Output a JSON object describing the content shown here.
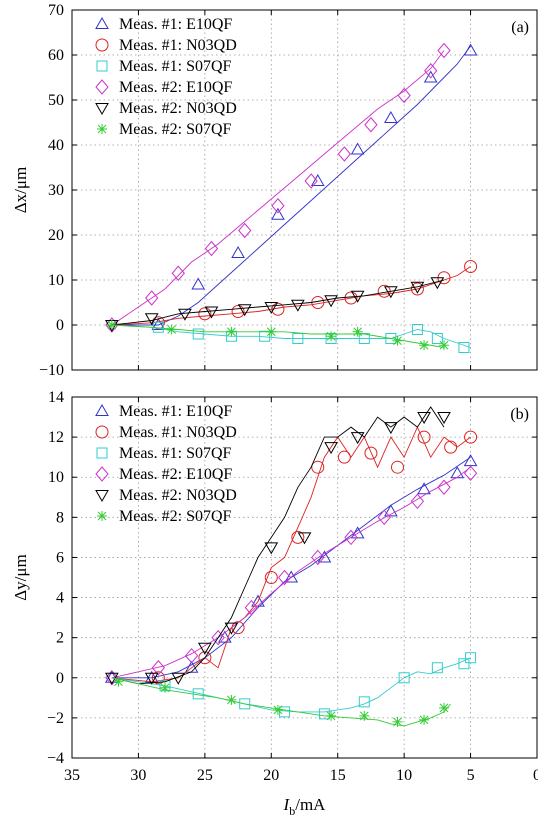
{
  "chart_data": [
    {
      "type": "line",
      "panel_label": "(a)",
      "ylabel": "Δx/μm",
      "xlabel": "",
      "xlim": [
        35,
        0
      ],
      "ylim": [
        -10,
        70
      ],
      "grid": true,
      "legend_position": "top-left",
      "x_ticks": [
        35,
        30,
        25,
        20,
        15,
        10,
        5,
        0
      ],
      "x_ticklabels": [
        "",
        "",
        "",
        "",
        "",
        "",
        "",
        ""
      ],
      "y_ticks": [
        -10,
        0,
        10,
        20,
        30,
        40,
        50,
        60,
        70
      ],
      "y_ticklabels": [
        "−10",
        "0",
        "10",
        "20",
        "30",
        "40",
        "50",
        "60",
        "70"
      ],
      "series": [
        {
          "name": "Meas. #1: E10QF",
          "color": "#3333cc",
          "marker": "triangle-up",
          "x": [
            32,
            28.5,
            27,
            25.5,
            24,
            22.5,
            21,
            19.5,
            18,
            16.5,
            15,
            13.5,
            12,
            10.5,
            9,
            8,
            7,
            6,
            5
          ],
          "y": [
            0,
            0,
            2,
            5,
            9,
            13,
            17,
            21,
            25,
            29,
            33,
            37,
            41,
            45,
            49,
            52,
            55,
            58,
            62
          ],
          "marker_x": [
            28.5,
            25.5,
            22.5,
            19.5,
            16.5,
            13.5,
            11,
            8,
            5
          ],
          "marker_y": [
            0,
            9,
            16,
            24.5,
            32,
            39,
            46,
            55,
            61
          ]
        },
        {
          "name": "Meas. #1: N03QD",
          "color": "#dd2222",
          "marker": "circle",
          "x": [
            32,
            29,
            27,
            25,
            23,
            21,
            19,
            17,
            15,
            13,
            11,
            9,
            7,
            6,
            5
          ],
          "y": [
            0,
            0.5,
            1.5,
            2,
            2.5,
            3,
            4,
            4.5,
            5.5,
            6.5,
            7,
            8,
            10,
            11,
            13
          ],
          "marker_x": [
            28.5,
            25,
            22.5,
            19.5,
            16.5,
            14,
            11.5,
            9,
            7,
            5
          ],
          "marker_y": [
            0.5,
            2.5,
            3,
            3.5,
            5,
            6,
            7.5,
            8,
            10.5,
            13
          ]
        },
        {
          "name": "Meas. #1: S07QF",
          "color": "#33cccc",
          "marker": "square",
          "x": [
            32,
            29,
            27,
            25,
            23,
            21,
            19,
            17,
            15,
            13,
            11,
            10,
            9,
            8,
            7,
            6,
            5
          ],
          "y": [
            0,
            -0.5,
            -1.5,
            -2,
            -2.5,
            -2.5,
            -3,
            -3,
            -3,
            -3,
            -3,
            -2,
            -1,
            -1.5,
            -3,
            -4,
            -5
          ],
          "marker_x": [
            28.5,
            25.5,
            23,
            20.5,
            18,
            15.5,
            13,
            11,
            9,
            7.5,
            5.5
          ],
          "marker_y": [
            -0.5,
            -2,
            -2.5,
            -2.5,
            -3,
            -3,
            -3,
            -3,
            -1,
            -3,
            -5
          ]
        },
        {
          "name": "Meas. #2: E10QF",
          "color": "#cc33cc",
          "marker": "diamond",
          "x": [
            32,
            30,
            28,
            26,
            24,
            22,
            20,
            18,
            16,
            14,
            12,
            10,
            8,
            7
          ],
          "y": [
            0,
            4,
            8,
            14,
            18,
            23,
            28,
            33,
            38,
            43,
            48,
            52,
            57,
            61
          ],
          "marker_x": [
            32,
            29,
            27,
            24.5,
            22,
            19.5,
            17,
            14.5,
            12.5,
            10,
            8,
            7
          ],
          "marker_y": [
            0,
            6,
            11.5,
            17,
            21,
            26.5,
            32,
            38,
            44.5,
            51,
            56.5,
            61
          ]
        },
        {
          "name": "Meas. #2: N03QD",
          "color": "#000000",
          "marker": "triangle-down",
          "x": [
            32,
            29,
            27,
            25,
            23,
            21,
            19,
            17,
            15,
            13,
            11,
            9,
            7
          ],
          "y": [
            0,
            1,
            2.5,
            3,
            3.5,
            4,
            4.5,
            5,
            6,
            6.5,
            7.5,
            8.5,
            10
          ],
          "marker_x": [
            32,
            29,
            26.5,
            24.5,
            22,
            20,
            18,
            15.5,
            13.5,
            11,
            9,
            7.5
          ],
          "marker_y": [
            0,
            1.5,
            2.5,
            3,
            3.5,
            4,
            4.5,
            5.5,
            6.5,
            7.5,
            8.5,
            9.5
          ]
        },
        {
          "name": "Meas. #2: S07QF",
          "color": "#33cc33",
          "marker": "asterisk",
          "x": [
            32,
            29,
            27,
            25,
            23,
            21,
            19,
            17,
            15,
            13,
            11,
            9,
            7
          ],
          "y": [
            0,
            -0.5,
            -1,
            -1.5,
            -1.5,
            -1.5,
            -1.5,
            -2,
            -2,
            -2,
            -3,
            -4,
            -5
          ],
          "marker_x": [
            32,
            27.5,
            23,
            20,
            15.5,
            13.5,
            10.5,
            8.5,
            7
          ],
          "marker_y": [
            0,
            -1,
            -1.5,
            -1.5,
            -2.5,
            -1.5,
            -3.5,
            -4.5,
            -4.5
          ]
        }
      ]
    },
    {
      "type": "line",
      "panel_label": "(b)",
      "ylabel": "Δy/μm",
      "xlabel": "Ib/mA",
      "xlabel_main": "I",
      "xlabel_sub": "b",
      "xlabel_unit": "/mA",
      "xlim": [
        35,
        0
      ],
      "ylim": [
        -4,
        14
      ],
      "grid": true,
      "legend_position": "top-left",
      "x_ticks": [
        35,
        30,
        25,
        20,
        15,
        10,
        5,
        0
      ],
      "x_ticklabels": [
        "35",
        "30",
        "25",
        "20",
        "15",
        "10",
        "5",
        "0"
      ],
      "y_ticks": [
        -4,
        -2,
        0,
        2,
        4,
        6,
        8,
        10,
        12,
        14
      ],
      "y_ticklabels": [
        "−4",
        "−2",
        "0",
        "2",
        "4",
        "6",
        "8",
        "10",
        "12",
        "14"
      ],
      "series": [
        {
          "name": "Meas. #1: E10QF",
          "color": "#3333cc",
          "marker": "triangle-up",
          "x": [
            32,
            29,
            27,
            25,
            23,
            21,
            19,
            17,
            15,
            13,
            11,
            9,
            7,
            5
          ],
          "y": [
            0,
            0,
            0.3,
            1,
            2,
            3.5,
            4.8,
            5.6,
            6.6,
            7.6,
            8.6,
            9.4,
            10.1,
            11
          ],
          "marker_x": [
            32,
            29,
            26,
            23.5,
            21,
            18.5,
            16,
            13.5,
            11,
            8.5,
            6,
            5
          ],
          "marker_y": [
            0,
            0,
            0.5,
            2,
            3.8,
            5,
            6,
            7.2,
            8.3,
            9.4,
            10.2,
            10.8
          ]
        },
        {
          "name": "Meas. #1: N03QD",
          "color": "#dd2222",
          "marker": "circle",
          "x": [
            32,
            29,
            27,
            26,
            25,
            24,
            23,
            22,
            21,
            20,
            19,
            18,
            17,
            16,
            15,
            14,
            13,
            12,
            11,
            10,
            9,
            8,
            7,
            6,
            5
          ],
          "y": [
            0,
            -0.2,
            0,
            0.5,
            1,
            0.5,
            2.5,
            3,
            3.8,
            5.5,
            6,
            7.5,
            9,
            11,
            12,
            11,
            12,
            10.5,
            12,
            11,
            12.5,
            11,
            12,
            11.5,
            12
          ],
          "marker_x": [
            28.5,
            25,
            22.5,
            20,
            18,
            16.5,
            14.5,
            12.5,
            10.5,
            8.5,
            6.5,
            5
          ],
          "marker_y": [
            0,
            1,
            2.5,
            5,
            7,
            10.5,
            11,
            11.2,
            10.5,
            12,
            11.5,
            12
          ]
        },
        {
          "name": "Meas. #1: S07QF",
          "color": "#33cccc",
          "marker": "square",
          "x": [
            32,
            30,
            28,
            26,
            24,
            22,
            20,
            18,
            16,
            14,
            13,
            12,
            11,
            10,
            9,
            8,
            7,
            6,
            5
          ],
          "y": [
            0,
            -0.2,
            -0.4,
            -0.7,
            -1,
            -1.3,
            -1.6,
            -1.7,
            -1.7,
            -1.5,
            -1.3,
            -1,
            -0.5,
            0,
            0.3,
            0.2,
            0.5,
            0.7,
            1
          ],
          "marker_x": [
            28,
            25.5,
            22,
            19,
            16,
            13,
            10,
            7.5,
            5.5,
            5
          ],
          "marker_y": [
            -0.4,
            -0.8,
            -1.3,
            -1.7,
            -1.8,
            -1.2,
            0,
            0.5,
            0.7,
            1
          ]
        },
        {
          "name": "Meas. #2: E10QF",
          "color": "#cc33cc",
          "marker": "diamond",
          "x": [
            32,
            30,
            28,
            26,
            24,
            22,
            20,
            18,
            16,
            14,
            12,
            10,
            8,
            6,
            5
          ],
          "y": [
            0,
            0.3,
            0.6,
            1.2,
            2,
            3,
            4.2,
            5.3,
            6.2,
            7,
            7.8,
            8.5,
            9.3,
            10,
            10.5
          ],
          "marker_x": [
            32,
            28.5,
            26,
            24,
            21.5,
            19,
            16.5,
            14,
            11.5,
            9,
            7,
            5
          ],
          "marker_y": [
            0,
            0.5,
            1.1,
            2,
            3.5,
            5,
            6,
            7,
            8,
            8.8,
            9.5,
            10.2
          ]
        },
        {
          "name": "Meas. #2: N03QD",
          "color": "#000000",
          "marker": "triangle-down",
          "x": [
            32,
            30,
            28,
            26,
            25,
            24,
            23,
            22,
            21,
            20,
            19,
            18,
            17,
            16,
            15,
            14,
            13,
            12,
            11,
            10,
            9,
            8,
            7
          ],
          "y": [
            0,
            -0.3,
            -0.2,
            0.3,
            1,
            2,
            3,
            4.5,
            6,
            7,
            8,
            9.5,
            10.5,
            12,
            12,
            12.5,
            12,
            13,
            12.5,
            13,
            12.5,
            13.5,
            12.5
          ],
          "marker_x": [
            32,
            29,
            27,
            25,
            23,
            20,
            17.5,
            15.5,
            13.5,
            11,
            8.5,
            7
          ],
          "marker_y": [
            0,
            0,
            0,
            1.5,
            2.5,
            6.5,
            7,
            11.5,
            12,
            12.5,
            13,
            13
          ]
        },
        {
          "name": "Meas. #2: S07QF",
          "color": "#33cc33",
          "marker": "asterisk",
          "x": [
            32,
            30,
            28,
            26,
            24,
            22,
            20,
            18,
            16,
            14,
            12,
            11,
            10,
            9,
            8,
            7,
            6.5
          ],
          "y": [
            0,
            -0.3,
            -0.6,
            -0.8,
            -1,
            -1.3,
            -1.5,
            -1.7,
            -1.9,
            -2,
            -2.1,
            -2.3,
            -2.4,
            -2.2,
            -2,
            -1.7,
            -1.3
          ],
          "marker_x": [
            31.5,
            28,
            23,
            19.5,
            15.5,
            13,
            10.5,
            8.5,
            7
          ],
          "marker_y": [
            -0.2,
            -0.5,
            -1.1,
            -1.6,
            -1.9,
            -1.9,
            -2.2,
            -2.1,
            -1.5
          ]
        }
      ]
    }
  ]
}
